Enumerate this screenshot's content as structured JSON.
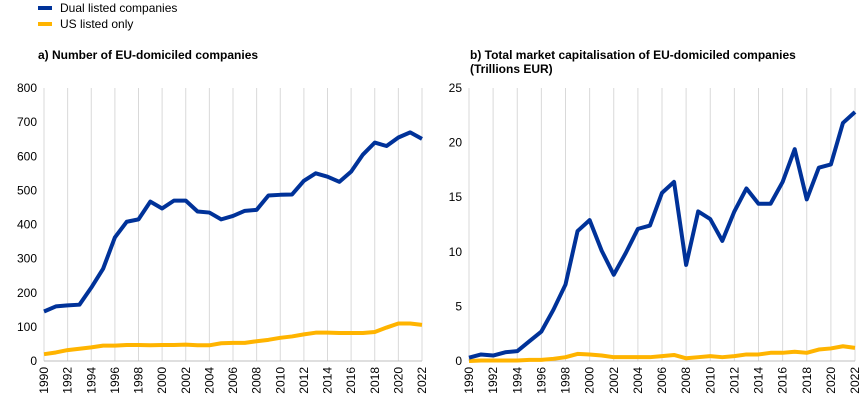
{
  "legend": {
    "items": [
      {
        "label": "Dual listed companies",
        "color": "#003299"
      },
      {
        "label": "US listed only",
        "color": "#FFB400"
      }
    ]
  },
  "chart_data": [
    {
      "type": "line",
      "title": "a) Number of EU-domiciled companies",
      "xlabel": "",
      "ylabel": "",
      "x": [
        1990,
        1991,
        1992,
        1993,
        1994,
        1995,
        1996,
        1997,
        1998,
        1999,
        2000,
        2001,
        2002,
        2003,
        2004,
        2005,
        2006,
        2007,
        2008,
        2009,
        2010,
        2011,
        2012,
        2013,
        2014,
        2015,
        2016,
        2017,
        2018,
        2019,
        2020,
        2021,
        2022
      ],
      "xticks": [
        1990,
        1992,
        1994,
        1996,
        1998,
        2000,
        2002,
        2004,
        2006,
        2008,
        2010,
        2012,
        2014,
        2016,
        2018,
        2020,
        2022
      ],
      "ylim": [
        0,
        800
      ],
      "yticks": [
        0,
        100,
        200,
        300,
        400,
        500,
        600,
        700,
        800
      ],
      "grid": "vertical",
      "series": [
        {
          "name": "Dual listed companies",
          "color": "#003299",
          "values": [
            145,
            160,
            163,
            165,
            215,
            270,
            362,
            408,
            415,
            467,
            447,
            470,
            470,
            438,
            435,
            415,
            425,
            440,
            443,
            485,
            487,
            488,
            528,
            550,
            540,
            525,
            555,
            605,
            640,
            630,
            655,
            670,
            651
          ]
        },
        {
          "name": "US listed only",
          "color": "#FFB400",
          "values": [
            20,
            25,
            32,
            36,
            40,
            45,
            45,
            47,
            47,
            46,
            47,
            47,
            48,
            46,
            46,
            52,
            53,
            53,
            58,
            62,
            68,
            72,
            78,
            83,
            83,
            82,
            82,
            82,
            85,
            98,
            110,
            110,
            106
          ]
        }
      ]
    },
    {
      "type": "line",
      "title": "b) Total market capitalisation of EU-domiciled companies (Trillions EUR)",
      "xlabel": "",
      "ylabel": "",
      "x": [
        1990,
        1991,
        1992,
        1993,
        1994,
        1995,
        1996,
        1997,
        1998,
        1999,
        2000,
        2001,
        2002,
        2003,
        2004,
        2005,
        2006,
        2007,
        2008,
        2009,
        2010,
        2011,
        2012,
        2013,
        2014,
        2015,
        2016,
        2017,
        2018,
        2019,
        2020,
        2021,
        2022
      ],
      "xticks": [
        1990,
        1992,
        1994,
        1996,
        1998,
        2000,
        2002,
        2004,
        2006,
        2008,
        2010,
        2012,
        2014,
        2016,
        2018,
        2020,
        2022
      ],
      "ylim": [
        0,
        25
      ],
      "yticks": [
        0,
        5,
        10,
        15,
        20,
        25
      ],
      "grid": "vertical",
      "series": [
        {
          "name": "Dual listed companies",
          "color": "#003299",
          "values": [
            0.3,
            0.6,
            0.5,
            0.8,
            0.9,
            1.8,
            2.7,
            4.7,
            7.0,
            11.9,
            12.9,
            10.1,
            7.9,
            9.9,
            12.1,
            12.4,
            15.4,
            16.4,
            8.8,
            13.7,
            13.0,
            11.0,
            13.7,
            15.8,
            14.4,
            14.4,
            16.4,
            19.4,
            14.8,
            17.7,
            18.0,
            21.8,
            22.8
          ]
        },
        {
          "name": "US listed only",
          "color": "#FFB400",
          "values": [
            0.0,
            0.05,
            0.05,
            0.05,
            0.05,
            0.1,
            0.1,
            0.2,
            0.35,
            0.65,
            0.6,
            0.5,
            0.35,
            0.35,
            0.35,
            0.35,
            0.45,
            0.55,
            0.25,
            0.35,
            0.45,
            0.35,
            0.45,
            0.6,
            0.6,
            0.75,
            0.75,
            0.85,
            0.75,
            1.05,
            1.15,
            1.35,
            1.2
          ]
        }
      ]
    }
  ]
}
